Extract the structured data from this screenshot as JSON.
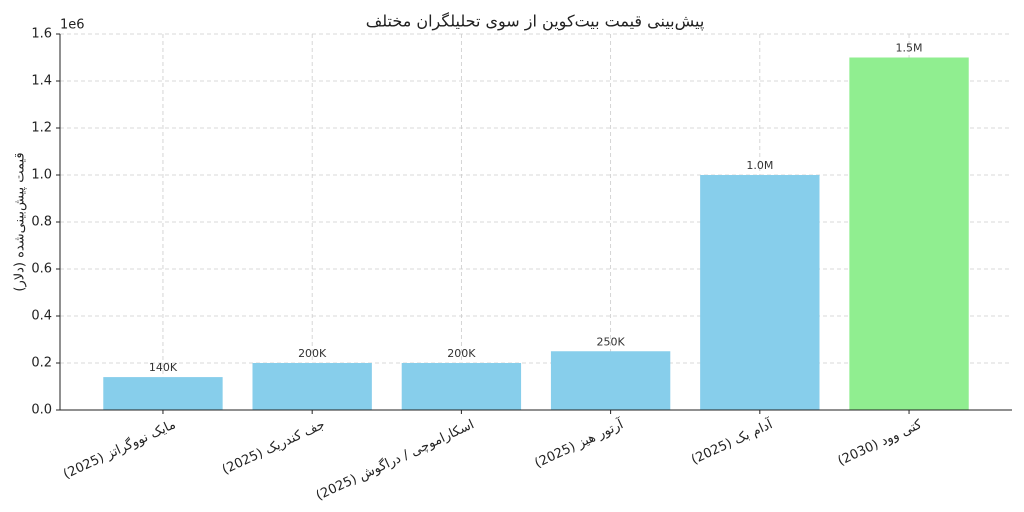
{
  "chart_data": {
    "type": "bar",
    "title": "پیش‌بینی قیمت بیت‌کوین از سوی تحلیلگران مختلف",
    "y_label": "قیمت پیش‌بینی‌شده (دلار)",
    "axis_offset": "1e6",
    "categories": [
      "مایک نووگراتز (2025)",
      "جف کندریک (2025)",
      "اسکاراموچی / دراگوش (2025)",
      "آرتور هیز (2025)",
      "آدام بک (2025)",
      "کتی وود (2030)"
    ],
    "values": [
      140000,
      200000,
      200000,
      250000,
      1000000,
      1500000
    ],
    "value_labels": [
      "140K",
      "200K",
      "200K",
      "250K",
      "1.0M",
      "1.5M"
    ],
    "colors": [
      "#87ceeb",
      "#87ceeb",
      "#87ceeb",
      "#87ceeb",
      "#87ceeb",
      "#90ee90"
    ],
    "ylim": [
      0,
      1600000
    ],
    "yticks": [
      {
        "value": 0,
        "label": "0.0"
      },
      {
        "value": 200000,
        "label": "0.2"
      },
      {
        "value": 400000,
        "label": "0.4"
      },
      {
        "value": 600000,
        "label": "0.6"
      },
      {
        "value": 800000,
        "label": "0.8"
      },
      {
        "value": 1000000,
        "label": "1.0"
      },
      {
        "value": 1200000,
        "label": "1.2"
      },
      {
        "value": 1400000,
        "label": "1.4"
      },
      {
        "value": 1600000,
        "label": "1.6"
      }
    ],
    "grid": true
  }
}
